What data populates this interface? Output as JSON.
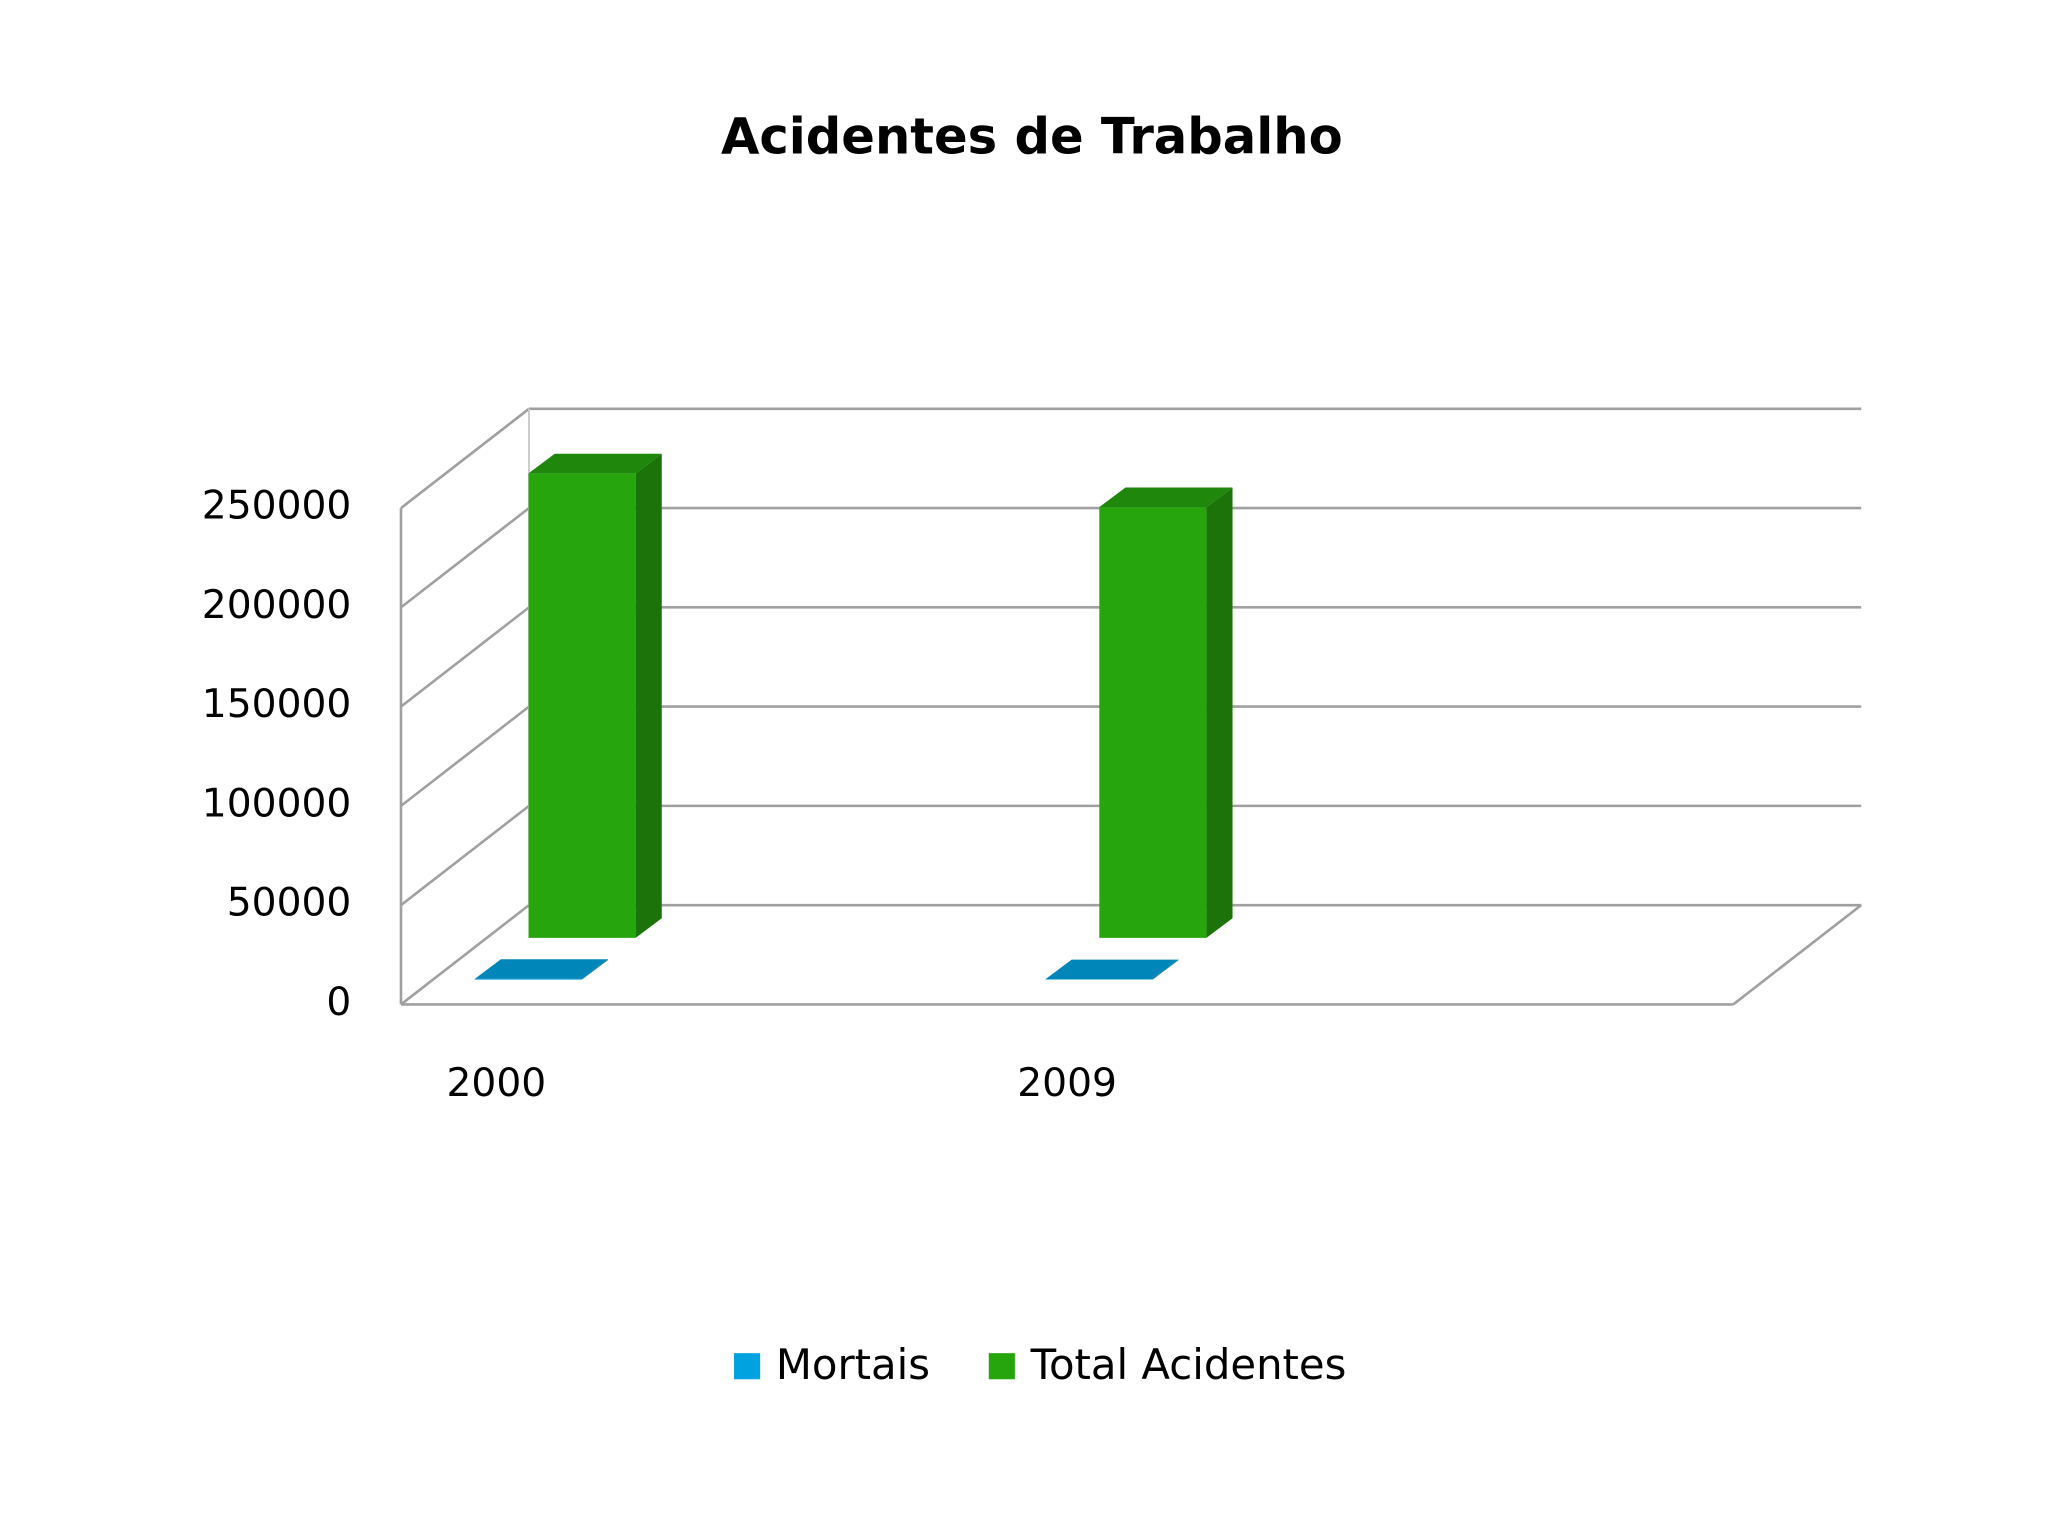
{
  "chart_data": {
    "type": "bar",
    "title": "Acidentes de Trabalho",
    "categories": [
      "2000",
      "2009"
    ],
    "series": [
      {
        "name": "Mortais",
        "color": "#00a3e0",
        "values": [
          370,
          220
        ]
      },
      {
        "name": "Total Acidentes",
        "color": "#26a50d",
        "values": [
          234000,
          217000
        ]
      }
    ],
    "ylim": [
      0,
      250000
    ],
    "yticks": [
      0,
      50000,
      100000,
      150000,
      200000,
      250000
    ],
    "grid": true
  }
}
